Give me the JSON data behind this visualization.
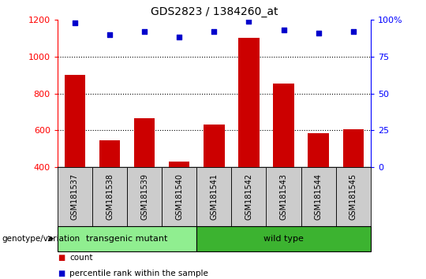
{
  "title": "GDS2823 / 1384260_at",
  "samples": [
    "GSM181537",
    "GSM181538",
    "GSM181539",
    "GSM181540",
    "GSM181541",
    "GSM181542",
    "GSM181543",
    "GSM181544",
    "GSM181545"
  ],
  "bar_values": [
    900,
    545,
    665,
    430,
    630,
    1100,
    855,
    585,
    605
  ],
  "percentile_values": [
    98,
    90,
    92,
    88,
    92,
    99,
    93,
    91,
    92
  ],
  "ylim_left": [
    400,
    1200
  ],
  "ylim_right": [
    0,
    100
  ],
  "yticks_left": [
    400,
    600,
    800,
    1000,
    1200
  ],
  "yticks_right": [
    0,
    25,
    50,
    75,
    100
  ],
  "bar_color": "#cc0000",
  "dot_color": "#0000cc",
  "bar_width": 0.6,
  "groups": [
    {
      "label": "transgenic mutant",
      "start": 0,
      "end": 3,
      "color": "#90ee90"
    },
    {
      "label": "wild type",
      "start": 4,
      "end": 8,
      "color": "#3cb330"
    }
  ],
  "group_label": "genotype/variation",
  "legend_count_label": "count",
  "legend_percentile_label": "percentile rank within the sample",
  "sample_box_color": "#cccccc",
  "grid_dotted_at": [
    600,
    800,
    1000
  ],
  "background": "#ffffff"
}
